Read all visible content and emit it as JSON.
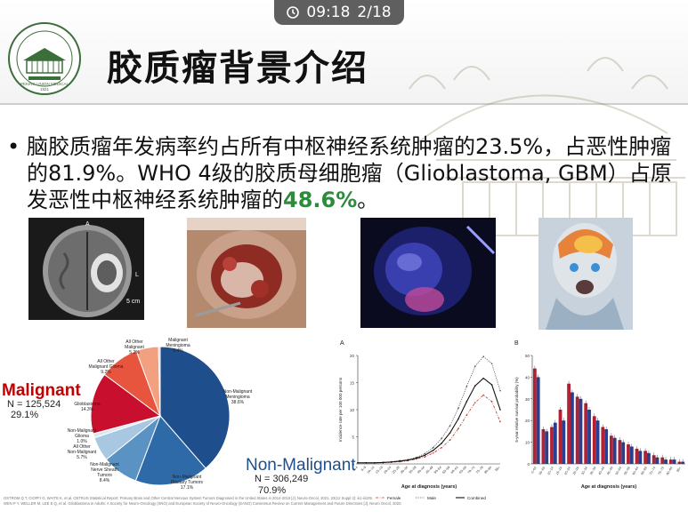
{
  "header": {
    "time": "09:18",
    "page": "2/18",
    "title": "胶质瘤背景介绍",
    "logo_text": "PEKING UNION MEDICAL COLLEGE HOSPITAL",
    "logo_year": "1921"
  },
  "bullet": {
    "part1": "脑胶质瘤年发病率约占所有中枢神经系统肿瘤的23.5%，占恶性肿瘤的81.9%。WHO 4级的胶质母细胞瘤（Glioblastoma, GBM）占原发恶性中枢神经系统肿瘤的",
    "highlight": "48.6%",
    "part2": "。"
  },
  "images": {
    "mri_label_a": "A",
    "mri_label_l": "L",
    "mri_scale": "5 cm"
  },
  "colors": {
    "highlight_green": "#2e8b3d",
    "malignant_red": "#c00000",
    "nonmalignant_blue": "#1f4e8c"
  },
  "chart_data": [
    {
      "type": "pie",
      "categories": [
        "Non-Malignant Meningioma",
        "Non-Malignant Pituitary Tumors",
        "Non-Malignant Nerve Sheath Tumors",
        "All Other Non-Malignant",
        "Non-Malignant Glioma",
        "Glioblastoma",
        "All Other Malignant Glioma",
        "All Other Malignant",
        "Malignant Meningioma"
      ],
      "labels": [
        "Non-Malignant\nMeningioma\n38.6%",
        "Non-Malignant\nPituitary Tumors\n17.1%",
        "Non-Malignant\nNerve Sheath\nTumors\n8.4%",
        "All Other\nNon-Malignant\n5.7%",
        "Non-Malignant\nGlioma\n1.0%",
        "Glioblastoma\n14.3%",
        "All Other\nMalignant Glioma\n9.2%",
        "All Other\nMalignant\n5.2%",
        "Malignant\nMeningioma\n0.4%"
      ],
      "values": [
        38.6,
        17.1,
        8.4,
        5.7,
        1.0,
        14.3,
        9.2,
        5.2,
        0.4
      ],
      "colors": [
        "#1f4e8c",
        "#2f6aa8",
        "#5a93c3",
        "#a7c8e0",
        "#dbe8f2",
        "#c8102e",
        "#e8553e",
        "#f2a07f",
        "#f7c7b3"
      ],
      "malignant": {
        "label": "Malignant",
        "n": "N = 125,524",
        "pct": "29.1%"
      },
      "non_malignant": {
        "label": "Non-Malignant",
        "n": "N = 306,249",
        "pct": "70.9%"
      }
    },
    {
      "type": "line",
      "panel": "A",
      "ylabel": "Incidence rate per 100 000 persons",
      "xlabel": "Age at diagnosis (years)",
      "ylim": [
        0,
        20
      ],
      "yticks": [
        "0",
        "5",
        "10",
        "15",
        "20"
      ],
      "x": [
        "0–4",
        "5–9",
        "10–14",
        "15–19",
        "20–24",
        "25–29",
        "30–34",
        "35–39",
        "40–44",
        "45–49",
        "50–54",
        "55–59",
        "60–64",
        "65–69",
        "70–74",
        "75–79",
        "80–84",
        "85+"
      ],
      "series": [
        {
          "name": "Female",
          "values": [
            0.2,
            0.2,
            0.2,
            0.2,
            0.3,
            0.4,
            0.6,
            0.9,
            1.3,
            2.0,
            3.0,
            4.4,
            6.5,
            9.0,
            11.3,
            12.7,
            11.5,
            7.8
          ]
        },
        {
          "name": "Male",
          "values": [
            0.2,
            0.2,
            0.2,
            0.3,
            0.4,
            0.6,
            0.8,
            1.2,
            1.9,
            3.0,
            4.7,
            7.0,
            10.3,
            14.3,
            18.0,
            19.8,
            18.5,
            13.5
          ]
        },
        {
          "name": "Combined",
          "values": [
            0.2,
            0.2,
            0.2,
            0.25,
            0.35,
            0.5,
            0.7,
            1.05,
            1.6,
            2.5,
            3.8,
            5.7,
            8.3,
            11.5,
            14.4,
            15.8,
            14.6,
            10.0
          ]
        }
      ]
    },
    {
      "type": "bar",
      "panel": "B",
      "ylabel": "5-year relative survival probability (%)",
      "xlabel": "Age at diagnosis (years)",
      "ylim": [
        0,
        50
      ],
      "yticks": [
        "0",
        "10",
        "20",
        "30",
        "40",
        "50"
      ],
      "categories": [
        "0–04",
        "05–09",
        "10–14",
        "15–19",
        "20–24",
        "25–29",
        "30–34",
        "35–39",
        "40–44",
        "45–49",
        "50–54",
        "55–59",
        "60–64",
        "65–69",
        "70–74",
        "75–79",
        "80–84",
        "85+"
      ],
      "series": [
        {
          "name": "Female",
          "values": [
            44,
            16,
            17,
            25,
            37,
            31,
            28,
            22,
            17,
            13,
            11,
            9,
            7,
            6,
            4,
            3,
            2,
            1
          ]
        },
        {
          "name": "Male",
          "values": [
            40,
            15,
            19,
            20,
            33,
            30,
            25,
            20,
            16,
            12,
            10,
            8,
            6,
            5,
            3,
            2,
            2,
            1
          ]
        }
      ]
    }
  ],
  "footnote": {
    "line1": "OSTROM Q T, CIOFFI G, WAITE K, et al. CBTRUS Statistical Report: Primary Brain and Other Central Nervous System Tumors Diagnosed in the United States in 2014-2018 [J]. Neuro-Oncol, 2021, 23(12 Suppl 2): iii1-iii105.",
    "line2": "WEN P Y, WELLER M, LEE E Q, et al. Glioblastoma in Adults: A Society for Neuro-Oncology (SNO) and European Society of Neuro-Oncology (EANO) Consensus Review on Current Management and Future Directions [J]. Neuro Oncol, 2020."
  }
}
